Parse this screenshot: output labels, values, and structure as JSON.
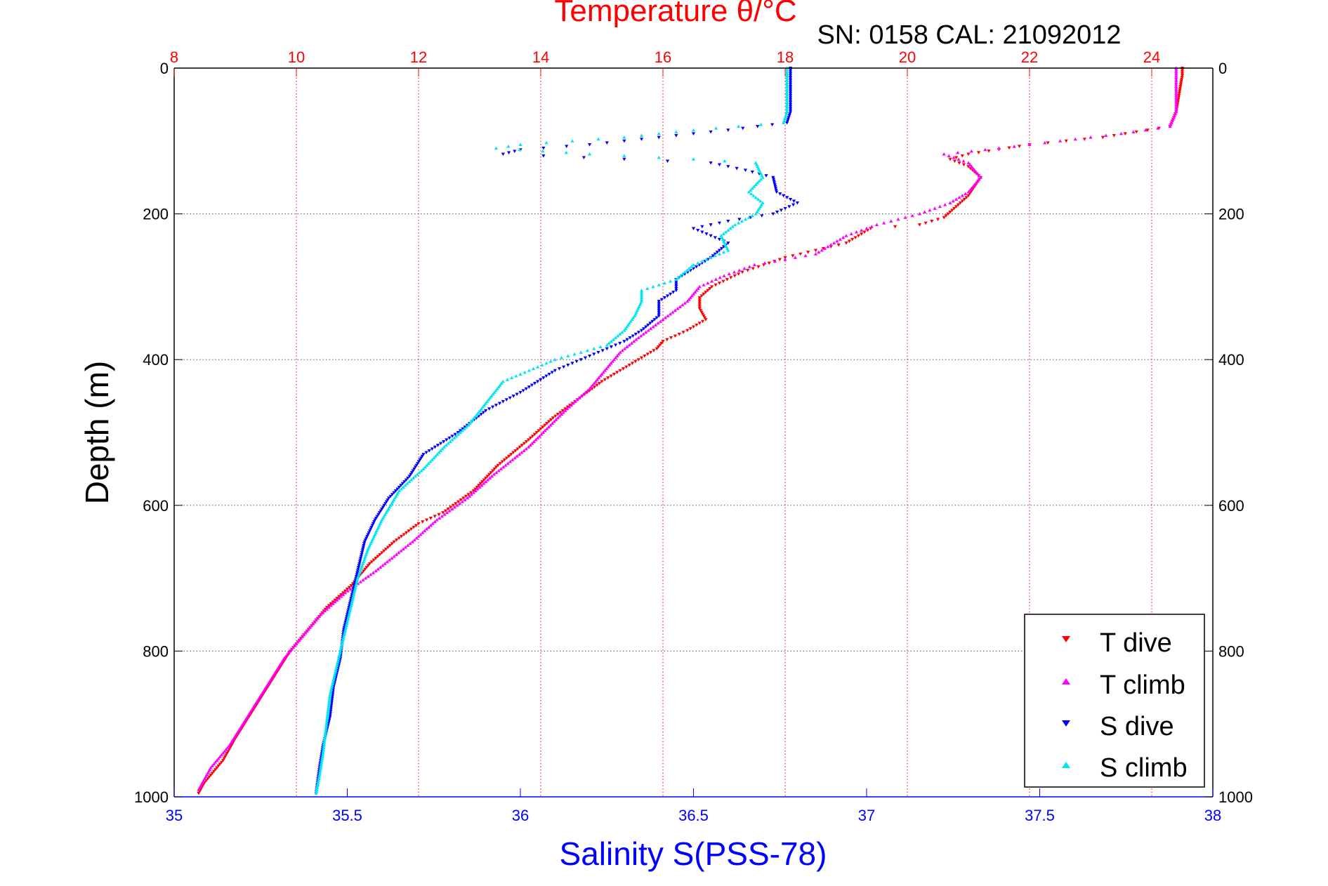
{
  "chart_data": {
    "type": "scatter",
    "top_axis_label": "Temperature θ/°C",
    "subtitle": "SN: 0158  CAL: 21092012",
    "xlabel": "Salinity S(PSS-78)",
    "ylabel": "Depth (m)",
    "temperature_axis": {
      "range": [
        8,
        25
      ],
      "ticks": [
        8,
        10,
        12,
        14,
        16,
        18,
        20,
        22,
        24
      ],
      "color": "#ff0000"
    },
    "salinity_axis": {
      "range": [
        35,
        38
      ],
      "ticks": [
        35,
        35.5,
        36,
        36.5,
        37,
        37.5,
        38
      ],
      "color": "#0000ff"
    },
    "depth_axis": {
      "range": [
        0,
        1000
      ],
      "ticks": [
        0,
        200,
        400,
        600,
        800,
        1000
      ],
      "reversed": true
    },
    "grid": {
      "x": true,
      "y": true
    },
    "legend": {
      "position": "bottom-right"
    },
    "series": [
      {
        "name": "T dive",
        "axis": "temperature",
        "color": "#ff0000",
        "marker": "triangle-down",
        "points": [
          [
            24.5,
            0
          ],
          [
            24.5,
            10
          ],
          [
            24.4,
            60
          ],
          [
            24.3,
            80
          ],
          [
            23.2,
            95
          ],
          [
            22.0,
            105
          ],
          [
            21.0,
            118
          ],
          [
            20.7,
            125
          ],
          [
            21.0,
            135
          ],
          [
            21.2,
            150
          ],
          [
            21.0,
            175
          ],
          [
            20.8,
            190
          ],
          [
            20.6,
            205
          ],
          [
            20.2,
            215
          ],
          [
            19.4,
            220
          ],
          [
            19.0,
            240
          ],
          [
            18.0,
            260
          ],
          [
            17.3,
            280
          ],
          [
            16.8,
            300
          ],
          [
            16.6,
            315
          ],
          [
            16.6,
            330
          ],
          [
            16.7,
            345
          ],
          [
            16.4,
            360
          ],
          [
            16.0,
            375
          ],
          [
            15.9,
            385
          ],
          [
            15.5,
            405
          ],
          [
            15.0,
            430
          ],
          [
            14.6,
            455
          ],
          [
            14.2,
            480
          ],
          [
            13.8,
            510
          ],
          [
            13.3,
            545
          ],
          [
            12.9,
            580
          ],
          [
            12.4,
            610
          ],
          [
            12.0,
            625
          ],
          [
            11.6,
            650
          ],
          [
            11.2,
            680
          ],
          [
            10.9,
            710
          ],
          [
            10.5,
            740
          ],
          [
            10.2,
            770
          ],
          [
            9.9,
            800
          ],
          [
            9.6,
            840
          ],
          [
            9.3,
            880
          ],
          [
            9.0,
            920
          ],
          [
            8.8,
            950
          ],
          [
            8.5,
            980
          ],
          [
            8.4,
            995
          ]
        ]
      },
      {
        "name": "T climb",
        "axis": "temperature",
        "color": "#ff00ff",
        "marker": "triangle-up",
        "points": [
          [
            24.4,
            0
          ],
          [
            24.4,
            20
          ],
          [
            24.4,
            60
          ],
          [
            24.3,
            80
          ],
          [
            23.5,
            90
          ],
          [
            22.5,
            100
          ],
          [
            21.5,
            110
          ],
          [
            20.6,
            118
          ],
          [
            21.0,
            130
          ],
          [
            21.2,
            150
          ],
          [
            21.0,
            170
          ],
          [
            20.7,
            185
          ],
          [
            20.2,
            200
          ],
          [
            19.5,
            215
          ],
          [
            19.0,
            230
          ],
          [
            18.5,
            255
          ],
          [
            17.5,
            270
          ],
          [
            17.0,
            285
          ],
          [
            16.6,
            300
          ],
          [
            16.4,
            320
          ],
          [
            16.0,
            345
          ],
          [
            15.6,
            370
          ],
          [
            15.3,
            390
          ],
          [
            15.0,
            420
          ],
          [
            14.8,
            440
          ],
          [
            14.4,
            470
          ],
          [
            13.8,
            520
          ],
          [
            13.2,
            560
          ],
          [
            12.8,
            590
          ],
          [
            12.3,
            620
          ],
          [
            11.9,
            650
          ],
          [
            11.3,
            690
          ],
          [
            10.8,
            720
          ],
          [
            10.4,
            750
          ],
          [
            10.1,
            780
          ],
          [
            9.8,
            810
          ],
          [
            9.5,
            850
          ],
          [
            9.2,
            890
          ],
          [
            8.9,
            930
          ],
          [
            8.6,
            960
          ],
          [
            8.4,
            990
          ]
        ]
      },
      {
        "name": "S dive",
        "axis": "salinity",
        "color": "#0000ff",
        "marker": "triangle-down",
        "points": [
          [
            36.78,
            0
          ],
          [
            36.78,
            10
          ],
          [
            36.78,
            60
          ],
          [
            36.77,
            75
          ],
          [
            36.6,
            85
          ],
          [
            36.4,
            95
          ],
          [
            36.2,
            105
          ],
          [
            36.0,
            112
          ],
          [
            35.95,
            118
          ],
          [
            36.3,
            125
          ],
          [
            36.55,
            130
          ],
          [
            36.65,
            140
          ],
          [
            36.73,
            150
          ],
          [
            36.74,
            170
          ],
          [
            36.8,
            185
          ],
          [
            36.73,
            200
          ],
          [
            36.6,
            210
          ],
          [
            36.5,
            220
          ],
          [
            36.6,
            240
          ],
          [
            36.55,
            260
          ],
          [
            36.5,
            275
          ],
          [
            36.45,
            290
          ],
          [
            36.45,
            305
          ],
          [
            36.4,
            320
          ],
          [
            36.4,
            340
          ],
          [
            36.35,
            360
          ],
          [
            36.3,
            375
          ],
          [
            36.2,
            395
          ],
          [
            36.1,
            415
          ],
          [
            36.0,
            445
          ],
          [
            35.9,
            470
          ],
          [
            35.82,
            500
          ],
          [
            35.72,
            530
          ],
          [
            35.68,
            560
          ],
          [
            35.62,
            590
          ],
          [
            35.58,
            620
          ],
          [
            35.55,
            650
          ],
          [
            35.53,
            690
          ],
          [
            35.51,
            730
          ],
          [
            35.49,
            770
          ],
          [
            35.48,
            810
          ],
          [
            35.46,
            850
          ],
          [
            35.45,
            890
          ],
          [
            35.43,
            930
          ],
          [
            35.42,
            960
          ],
          [
            35.41,
            995
          ]
        ]
      },
      {
        "name": "S climb",
        "axis": "salinity",
        "color": "#00e5ee",
        "marker": "triangle-up",
        "points": [
          [
            36.77,
            0
          ],
          [
            36.77,
            20
          ],
          [
            36.77,
            60
          ],
          [
            36.76,
            75
          ],
          [
            36.5,
            85
          ],
          [
            36.3,
            95
          ],
          [
            36.0,
            105
          ],
          [
            35.93,
            110
          ],
          [
            36.2,
            118
          ],
          [
            36.5,
            125
          ],
          [
            36.68,
            130
          ],
          [
            36.7,
            150
          ],
          [
            36.66,
            170
          ],
          [
            36.7,
            185
          ],
          [
            36.68,
            200
          ],
          [
            36.62,
            215
          ],
          [
            36.58,
            230
          ],
          [
            36.6,
            250
          ],
          [
            36.5,
            270
          ],
          [
            36.45,
            290
          ],
          [
            36.35,
            305
          ],
          [
            36.35,
            320
          ],
          [
            36.33,
            340
          ],
          [
            36.3,
            360
          ],
          [
            36.25,
            380
          ],
          [
            36.1,
            400
          ],
          [
            35.95,
            430
          ],
          [
            35.9,
            460
          ],
          [
            35.85,
            490
          ],
          [
            35.78,
            520
          ],
          [
            35.72,
            550
          ],
          [
            35.65,
            580
          ],
          [
            35.6,
            620
          ],
          [
            35.56,
            660
          ],
          [
            35.53,
            700
          ],
          [
            35.51,
            740
          ],
          [
            35.49,
            780
          ],
          [
            35.47,
            820
          ],
          [
            35.45,
            860
          ],
          [
            35.44,
            900
          ],
          [
            35.43,
            940
          ],
          [
            35.42,
            970
          ],
          [
            35.41,
            995
          ]
        ]
      }
    ]
  }
}
